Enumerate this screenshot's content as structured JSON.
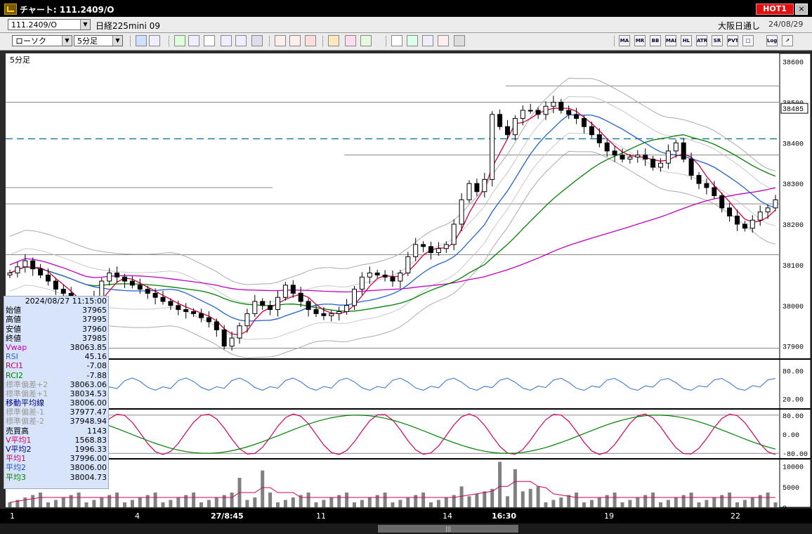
{
  "window": {
    "title": "チャート: 111.2409/O",
    "hot_label": "HOT1",
    "close_glyph": "×"
  },
  "symbol_bar": {
    "code": "111.2409/O",
    "name": "日経225mini 09",
    "exchange": "大阪日通し",
    "date": "24/08/29"
  },
  "toolbar": {
    "chart_type": "ローソク",
    "timeframe": "5分足",
    "buttons_left": [
      "zoom-icon",
      "crosshair-icon",
      "pencil-icon",
      "draw-tool-icon",
      "cursor-icon",
      "undo-icon",
      "notes-icon",
      "trash-icon",
      "candle-a-icon",
      "candle-b-icon",
      "all-icon",
      "settings-icon",
      "brush-icon",
      "palette-icon",
      "indicator-a-icon",
      "indicator-b-icon",
      "indicator-c-icon",
      "compare-icon",
      "blank-icon"
    ],
    "buttons_right": [
      {
        "name": "ma-icon",
        "label": "MA"
      },
      {
        "name": "mr-icon",
        "label": "MR"
      },
      {
        "name": "bb-icon",
        "label": "BB"
      },
      {
        "name": "mae-icon",
        "label": "MAE"
      },
      {
        "name": "hl-icon",
        "label": "HL"
      },
      {
        "name": "atr-icon",
        "label": "ATR"
      },
      {
        "name": "sr-icon",
        "label": "SR"
      },
      {
        "name": "pvt-icon",
        "label": "PVT"
      },
      {
        "name": "box-icon",
        "label": "□"
      },
      {
        "name": "log-icon",
        "label": "Log"
      },
      {
        "name": "export-icon",
        "label": "↗"
      }
    ]
  },
  "chart_label": "5分足",
  "chart_data": {
    "type": "candlestick",
    "price_axis": {
      "ticks": [
        38600,
        38500,
        38400,
        38300,
        38200,
        38100,
        38000,
        37900
      ],
      "current_price": "38485"
    },
    "x_ticks": [
      {
        "label": "1",
        "bold": false
      },
      {
        "label": "4",
        "bold": false
      },
      {
        "label": "27/8:45",
        "bold": true
      },
      {
        "label": "11",
        "bold": false
      },
      {
        "label": "14",
        "bold": false
      },
      {
        "label": "16:30",
        "bold": true
      },
      {
        "label": "19",
        "bold": false
      },
      {
        "label": "22",
        "bold": false
      }
    ],
    "oscillator1_axis": [
      "80.00",
      "20.00"
    ],
    "oscillator2_axis": [
      "80.00",
      "0.00",
      "-80.00"
    ],
    "volume_axis": [
      "10000",
      "5000",
      "0"
    ],
    "close_series": [
      38080,
      38095,
      38110,
      38090,
      38075,
      38060,
      38040,
      38030,
      38010,
      37990,
      37985,
      38020,
      38060,
      38080,
      38070,
      38060,
      38050,
      38040,
      38030,
      38020,
      38010,
      38000,
      37990,
      37985,
      37980,
      37970,
      37960,
      37940,
      37900,
      37920,
      37950,
      37980,
      38010,
      38000,
      37990,
      38020,
      38050,
      38030,
      38010,
      37990,
      37980,
      37975,
      37980,
      37985,
      38000,
      38040,
      38070,
      38080,
      38075,
      38070,
      38060,
      38080,
      38120,
      38150,
      38145,
      38130,
      38140,
      38150,
      38200,
      38260,
      38300,
      38280,
      38310,
      38470,
      38440,
      38420,
      38460,
      38480,
      38480,
      38470,
      38490,
      38500,
      38480,
      38470,
      38460,
      38440,
      38420,
      38400,
      38380,
      38370,
      38360,
      38365,
      38370,
      38360,
      38340,
      38350,
      38380,
      38400,
      38360,
      38320,
      38300,
      38290,
      38270,
      38240,
      38220,
      38200,
      38190,
      38210,
      38230,
      38240,
      38260
    ]
  },
  "info_panel": {
    "timestamp": "2024/08/27 11:15:00",
    "rows": [
      {
        "label": "始値",
        "value": "37965",
        "color": "#000000"
      },
      {
        "label": "高値",
        "value": "37995",
        "color": "#000000"
      },
      {
        "label": "安値",
        "value": "37960",
        "color": "#000000"
      },
      {
        "label": "終値",
        "value": "37985",
        "color": "#000000"
      },
      {
        "label": "Vwap",
        "value": "38063.85",
        "color": "#c000c0"
      },
      {
        "label": "RSI",
        "value": "45.16",
        "color": "#3060d0"
      },
      {
        "label": "RCI1",
        "value": "-7.08",
        "color": "#d00060"
      },
      {
        "label": "RCI2",
        "value": "-7.88",
        "color": "#008000"
      },
      {
        "label": "標準偏差+2",
        "value": "38063.06",
        "color": "#999999"
      },
      {
        "label": "標準偏差+1",
        "value": "38034.53",
        "color": "#999999"
      },
      {
        "label": "移動平均線",
        "value": "38006.00",
        "color": "#000080"
      },
      {
        "label": "標準偏差-1",
        "value": "37977.47",
        "color": "#999999"
      },
      {
        "label": "標準偏差-2",
        "value": "37948.94",
        "color": "#999999"
      },
      {
        "label": "売買高",
        "value": "1143",
        "color": "#000000"
      },
      {
        "label": "V平均1",
        "value": "1568.83",
        "color": "#d00060"
      },
      {
        "label": "V平均2",
        "value": "1996.33",
        "color": "#000080"
      },
      {
        "label": "平均1",
        "value": "37996.00",
        "color": "#d00060"
      },
      {
        "label": "平均2",
        "value": "38006.00",
        "color": "#2050c0"
      },
      {
        "label": "平均3",
        "value": "38004.73",
        "color": "#008000"
      }
    ]
  }
}
